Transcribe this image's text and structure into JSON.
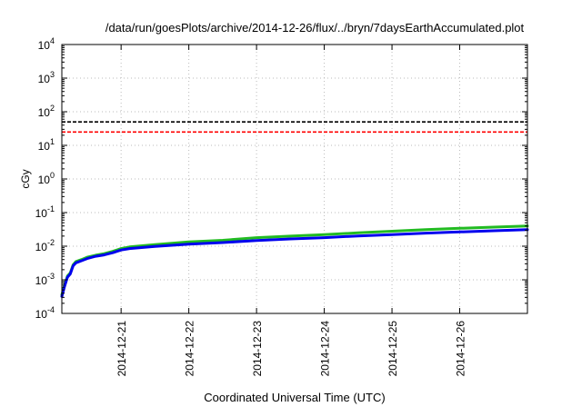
{
  "chart_data": {
    "type": "line",
    "title": "/data/run/goesPlots/archive/2014-12-26/flux/../bryn/7daysEarthAccumulated.plot",
    "xlabel": "Coordinated Universal Time (UTC)",
    "ylabel": "cGy",
    "y_scale": "log",
    "ylim": [
      0.0001,
      10000
    ],
    "xlim": [
      "2014-12-20 03:00",
      "2014-12-27 00:00"
    ],
    "y_ticks": [
      {
        "value": 0.0001,
        "base": "10",
        "exp": "-4"
      },
      {
        "value": 0.001,
        "base": "10",
        "exp": "-3"
      },
      {
        "value": 0.01,
        "base": "10",
        "exp": "-2"
      },
      {
        "value": 0.1,
        "base": "10",
        "exp": "-1"
      },
      {
        "value": 1,
        "base": "10",
        "exp": "0"
      },
      {
        "value": 10,
        "base": "10",
        "exp": "1"
      },
      {
        "value": 100,
        "base": "10",
        "exp": "2"
      },
      {
        "value": 1000,
        "base": "10",
        "exp": "3"
      },
      {
        "value": 10000,
        "base": "10",
        "exp": "4"
      }
    ],
    "x_ticks": [
      {
        "value": "2014-12-21 00:00",
        "label": "2014-12-21"
      },
      {
        "value": "2014-12-22 00:00",
        "label": "2014-12-22"
      },
      {
        "value": "2014-12-23 00:00",
        "label": "2014-12-23"
      },
      {
        "value": "2014-12-24 00:00",
        "label": "2014-12-24"
      },
      {
        "value": "2014-12-25 00:00",
        "label": "2014-12-25"
      },
      {
        "value": "2014-12-26 00:00",
        "label": "2014-12-26"
      }
    ],
    "grid": true,
    "reference_lines": [
      {
        "y": 50,
        "color": "#000000",
        "style": "dashed"
      },
      {
        "y": 25,
        "color": "#ff0000",
        "style": "dashed"
      }
    ],
    "series": [
      {
        "color": "#22bb22",
        "points": [
          [
            "2014-12-20 03:00",
            0.00036
          ],
          [
            "2014-12-20 04:00",
            0.0007
          ],
          [
            "2014-12-20 05:00",
            0.0013
          ],
          [
            "2014-12-20 06:00",
            0.0016
          ],
          [
            "2014-12-20 07:00",
            0.0028
          ],
          [
            "2014-12-20 08:00",
            0.0035
          ],
          [
            "2014-12-20 10:00",
            0.004
          ],
          [
            "2014-12-20 12:00",
            0.0047
          ],
          [
            "2014-12-20 15:00",
            0.0054
          ],
          [
            "2014-12-20 18:00",
            0.006
          ],
          [
            "2014-12-20 21:00",
            0.007
          ],
          [
            "2014-12-21 00:00",
            0.0085
          ],
          [
            "2014-12-21 03:00",
            0.0095
          ],
          [
            "2014-12-21 12:00",
            0.0112
          ],
          [
            "2014-12-22 00:00",
            0.0135
          ],
          [
            "2014-12-22 12:00",
            0.015
          ],
          [
            "2014-12-23 00:00",
            0.018
          ],
          [
            "2014-12-23 12:00",
            0.02
          ],
          [
            "2014-12-24 00:00",
            0.022
          ],
          [
            "2014-12-24 12:00",
            0.025
          ],
          [
            "2014-12-25 00:00",
            0.028
          ],
          [
            "2014-12-25 12:00",
            0.031
          ],
          [
            "2014-12-26 00:00",
            0.034
          ],
          [
            "2014-12-26 12:00",
            0.037
          ],
          [
            "2014-12-27 00:00",
            0.04
          ]
        ]
      },
      {
        "color": "#0000ee",
        "points": [
          [
            "2014-12-20 03:00",
            0.00032
          ],
          [
            "2014-12-20 04:00",
            0.00065
          ],
          [
            "2014-12-20 05:00",
            0.0012
          ],
          [
            "2014-12-20 06:00",
            0.0015
          ],
          [
            "2014-12-20 07:00",
            0.0026
          ],
          [
            "2014-12-20 08:00",
            0.0032
          ],
          [
            "2014-12-20 10:00",
            0.0037
          ],
          [
            "2014-12-20 12:00",
            0.0043
          ],
          [
            "2014-12-20 15:00",
            0.005
          ],
          [
            "2014-12-20 18:00",
            0.0055
          ],
          [
            "2014-12-20 21:00",
            0.0064
          ],
          [
            "2014-12-21 00:00",
            0.0077
          ],
          [
            "2014-12-21 03:00",
            0.0085
          ],
          [
            "2014-12-21 12:00",
            0.0098
          ],
          [
            "2014-12-22 00:00",
            0.0115
          ],
          [
            "2014-12-22 12:00",
            0.0128
          ],
          [
            "2014-12-23 00:00",
            0.0148
          ],
          [
            "2014-12-23 12:00",
            0.0165
          ],
          [
            "2014-12-24 00:00",
            0.018
          ],
          [
            "2014-12-24 12:00",
            0.0202
          ],
          [
            "2014-12-25 00:00",
            0.0222
          ],
          [
            "2014-12-25 12:00",
            0.0245
          ],
          [
            "2014-12-26 00:00",
            0.0265
          ],
          [
            "2014-12-26 12:00",
            0.0288
          ],
          [
            "2014-12-27 00:00",
            0.031
          ]
        ]
      }
    ]
  }
}
